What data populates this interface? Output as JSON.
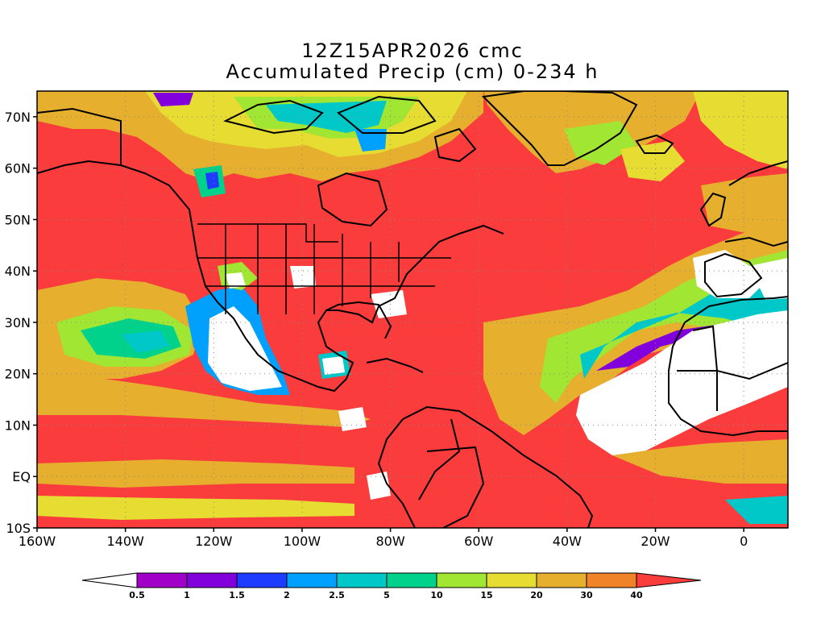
{
  "title": {
    "line1": "12Z15APR2026 cmc",
    "line2": "Accumulated Precip (cm) 0-234 h"
  },
  "map": {
    "lon_range": [
      -160,
      10
    ],
    "lat_range": [
      -10,
      75
    ],
    "grid": "dotted",
    "lat_ticks": [
      {
        "lat": 70,
        "label": "70N"
      },
      {
        "lat": 60,
        "label": "60N"
      },
      {
        "lat": 50,
        "label": "50N"
      },
      {
        "lat": 40,
        "label": "40N"
      },
      {
        "lat": 30,
        "label": "30N"
      },
      {
        "lat": 20,
        "label": "20N"
      },
      {
        "lat": 10,
        "label": "10N"
      },
      {
        "lat": 0,
        "label": "EQ"
      },
      {
        "lat": -10,
        "label": "10S"
      }
    ],
    "lon_ticks": [
      {
        "lon": -160,
        "label": "160W"
      },
      {
        "lon": -140,
        "label": "140W"
      },
      {
        "lon": -120,
        "label": "120W"
      },
      {
        "lon": -100,
        "label": "100W"
      },
      {
        "lon": -80,
        "label": "80W"
      },
      {
        "lon": -60,
        "label": "60W"
      },
      {
        "lon": -40,
        "label": "40W"
      },
      {
        "lon": -20,
        "label": "20W"
      },
      {
        "lon": 0,
        "label": "0"
      }
    ]
  },
  "colorbar": {
    "low_color": "#ffffff",
    "colors": [
      "#a000c8",
      "#8200dc",
      "#1e3cff",
      "#00a0ff",
      "#00c8c8",
      "#00d28c",
      "#a0e632",
      "#e6dc32",
      "#e6af2d",
      "#f08228",
      "#fa3c3c"
    ],
    "labels": [
      "0.5",
      "1",
      "1.5",
      "2",
      "2.5",
      "5",
      "10",
      "15",
      "20",
      "30",
      "40"
    ]
  },
  "colors": {
    "background": "#ffffff",
    "dominant_precip": "#fa3c3c",
    "dry": "#ffffff",
    "coastline": "#000000"
  }
}
